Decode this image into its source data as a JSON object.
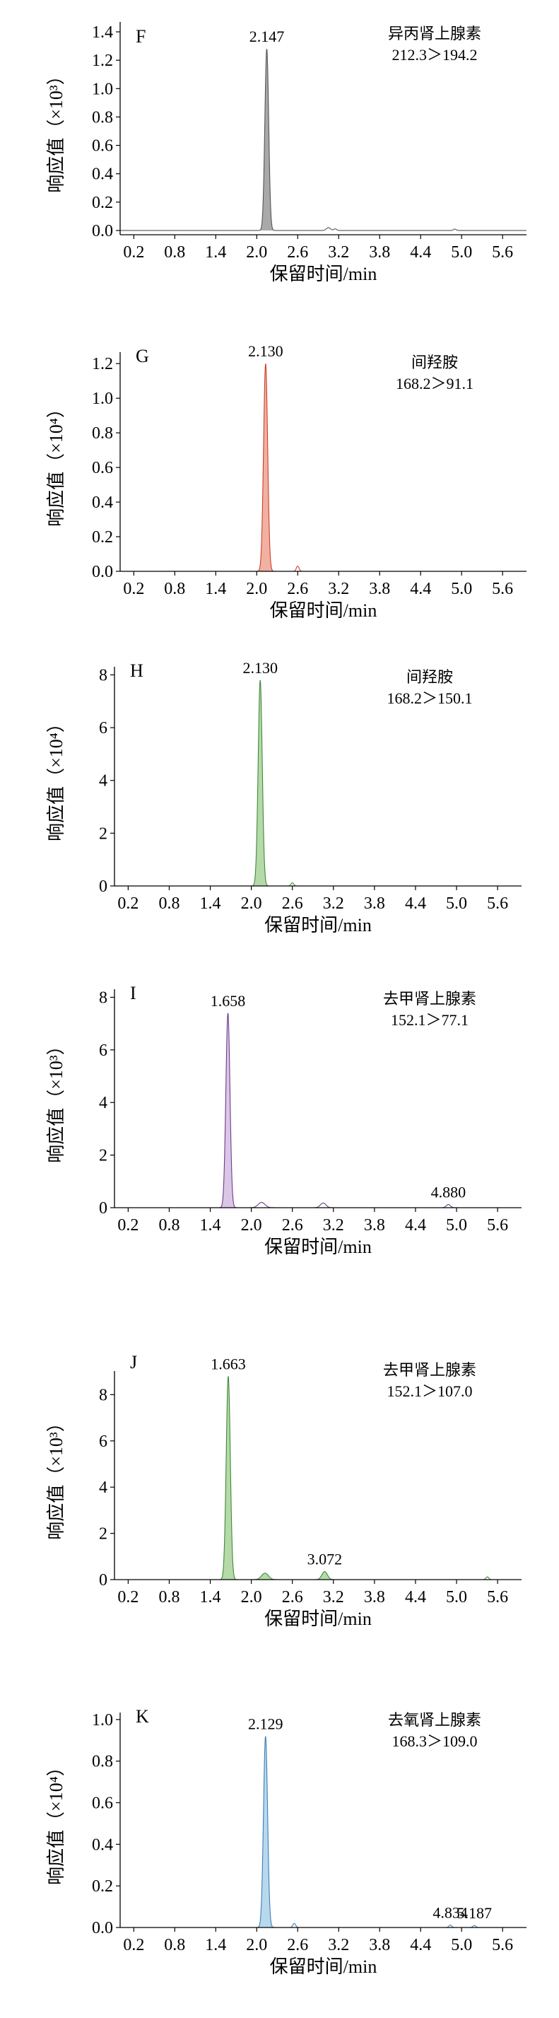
{
  "chart_data": [
    {
      "type": "line",
      "panel_label": "F",
      "compound": "异丙肾上腺素",
      "transition": "212.3＞194.2",
      "xlabel": "保留时间/min",
      "ylabel": "响应值（×10³）",
      "xticks": [
        "0.2",
        "0.8",
        "1.4",
        "2.0",
        "2.6",
        "3.2",
        "3.8",
        "4.4",
        "5.0",
        "5.6"
      ],
      "yticks": [
        "0.0",
        "0.2",
        "0.4",
        "0.6",
        "0.8",
        "1.0",
        "1.2",
        "1.4"
      ],
      "xlim": [
        0.0,
        5.95
      ],
      "ylim": [
        -0.03,
        1.45
      ],
      "fill_color": "#a9a9a9",
      "line_color": "#555555",
      "peaks": [
        {
          "rt": 2.147,
          "height": 1.28,
          "width": 0.028,
          "labeled": true,
          "filled": true
        },
        {
          "rt": 3.05,
          "height": 0.02,
          "width": 0.03,
          "labeled": false,
          "filled": false
        },
        {
          "rt": 3.15,
          "height": 0.012,
          "width": 0.02,
          "labeled": false,
          "filled": false
        },
        {
          "rt": 4.9,
          "height": 0.01,
          "width": 0.02,
          "labeled": false,
          "filled": false
        }
      ],
      "peak_labels": [
        "2.147"
      ]
    },
    {
      "type": "line",
      "panel_label": "G",
      "compound": "间羟胺",
      "transition": "168.2＞91.1",
      "xlabel": "保留时间/min",
      "ylabel": "响应值（×10⁴）",
      "xticks": [
        "0.2",
        "0.8",
        "1.4",
        "2.0",
        "2.6",
        "3.2",
        "3.8",
        "4.4",
        "5.0",
        "5.6"
      ],
      "yticks": [
        "0.0",
        "0.2",
        "0.4",
        "0.6",
        "0.8",
        "1.0",
        "1.2"
      ],
      "xlim": [
        0.0,
        5.95
      ],
      "ylim": [
        0.0,
        1.25
      ],
      "fill_color": "#f2b0a2",
      "line_color": "#c8402a",
      "peaks": [
        {
          "rt": 2.13,
          "height": 1.2,
          "width": 0.03,
          "labeled": true,
          "filled": true
        },
        {
          "rt": 2.6,
          "height": 0.03,
          "width": 0.02,
          "labeled": false,
          "filled": false
        }
      ],
      "peak_labels": [
        "2.130"
      ]
    },
    {
      "type": "line",
      "panel_label": "H",
      "compound": "间羟胺",
      "transition": "168.2＞150.1",
      "xlabel": "保留时间/min",
      "ylabel": "响应值（×10⁴）",
      "xticks": [
        "0.2",
        "0.8",
        "1.4",
        "2.0",
        "2.6",
        "3.2",
        "3.8",
        "4.4",
        "5.0",
        "5.6"
      ],
      "yticks": [
        "0",
        "2",
        "4",
        "6",
        "8"
      ],
      "xlim": [
        0.0,
        5.95
      ],
      "ylim": [
        0.0,
        8.2
      ],
      "fill_color": "#b5d9a8",
      "line_color": "#3f8a3a",
      "peaks": [
        {
          "rt": 2.13,
          "height": 7.8,
          "width": 0.03,
          "labeled": true,
          "filled": true
        },
        {
          "rt": 2.6,
          "height": 0.12,
          "width": 0.02,
          "labeled": false,
          "filled": false
        }
      ],
      "peak_labels": [
        "2.130"
      ]
    },
    {
      "type": "line",
      "panel_label": "I",
      "compound": "去甲肾上腺素",
      "transition": "152.1＞77.1",
      "xlabel": "保留时间/min",
      "ylabel": "响应值（×10³）",
      "xticks": [
        "0.2",
        "0.8",
        "1.4",
        "2.0",
        "2.6",
        "3.2",
        "3.8",
        "4.4",
        "5.0",
        "5.6"
      ],
      "yticks": [
        "0",
        "2",
        "4",
        "6",
        "8"
      ],
      "xlim": [
        0.0,
        5.95
      ],
      "ylim": [
        0.0,
        8.2
      ],
      "fill_color": "#dcc6e6",
      "line_color": "#6a3d8e",
      "peaks": [
        {
          "rt": 1.658,
          "height": 7.4,
          "width": 0.03,
          "labeled": true,
          "filled": true
        },
        {
          "rt": 2.15,
          "height": 0.2,
          "width": 0.05,
          "labeled": false,
          "filled": false
        },
        {
          "rt": 3.05,
          "height": 0.18,
          "width": 0.04,
          "labeled": false,
          "filled": false
        },
        {
          "rt": 4.88,
          "height": 0.12,
          "width": 0.03,
          "labeled": true,
          "filled": false
        }
      ],
      "peak_labels": [
        "1.658",
        "4.880"
      ]
    },
    {
      "type": "line",
      "panel_label": "J",
      "compound": "去甲肾上腺素",
      "transition": "152.1＞107.0",
      "xlabel": "保留时间/min",
      "ylabel": "响应值（×10³）",
      "xticks": [
        "0.2",
        "0.8",
        "1.4",
        "2.0",
        "2.6",
        "3.2",
        "3.8",
        "4.4",
        "5.0",
        "5.6"
      ],
      "yticks": [
        "0",
        "2",
        "4",
        "6",
        "8"
      ],
      "xlim": [
        0.0,
        5.95
      ],
      "ylim": [
        0.0,
        8.9
      ],
      "fill_color": "#b5d9a8",
      "line_color": "#3f8a3a",
      "peaks": [
        {
          "rt": 1.663,
          "height": 8.8,
          "width": 0.03,
          "labeled": true,
          "filled": true
        },
        {
          "rt": 2.2,
          "height": 0.28,
          "width": 0.05,
          "labeled": false,
          "filled": true
        },
        {
          "rt": 3.072,
          "height": 0.35,
          "width": 0.04,
          "labeled": true,
          "filled": true
        },
        {
          "rt": 5.45,
          "height": 0.12,
          "width": 0.02,
          "labeled": false,
          "filled": false
        }
      ],
      "peak_labels": [
        "1.663",
        "3.072"
      ]
    },
    {
      "type": "line",
      "panel_label": "K",
      "compound": "去氧肾上腺素",
      "transition": "168.3＞109.0",
      "xlabel": "保留时间/min",
      "ylabel": "响应值（×10⁴）",
      "xticks": [
        "0.2",
        "0.8",
        "1.4",
        "2.0",
        "2.6",
        "3.2",
        "3.8",
        "4.4",
        "5.0",
        "5.6"
      ],
      "yticks": [
        "0.0",
        "0.2",
        "0.4",
        "0.6",
        "0.8",
        "1.0"
      ],
      "xlim": [
        0.0,
        5.95
      ],
      "ylim": [
        0.0,
        1.02
      ],
      "fill_color": "#b8d8ee",
      "line_color": "#3d7fb5",
      "peaks": [
        {
          "rt": 2.129,
          "height": 0.92,
          "width": 0.03,
          "labeled": true,
          "filled": true
        },
        {
          "rt": 2.55,
          "height": 0.02,
          "width": 0.02,
          "labeled": false,
          "filled": false
        },
        {
          "rt": 4.834,
          "height": 0.012,
          "width": 0.02,
          "labeled": true,
          "filled": false
        },
        {
          "rt": 5.187,
          "height": 0.01,
          "width": 0.02,
          "labeled": true,
          "filled": false
        }
      ],
      "peak_labels": [
        "2.129",
        "4.834",
        "5.187"
      ]
    }
  ]
}
